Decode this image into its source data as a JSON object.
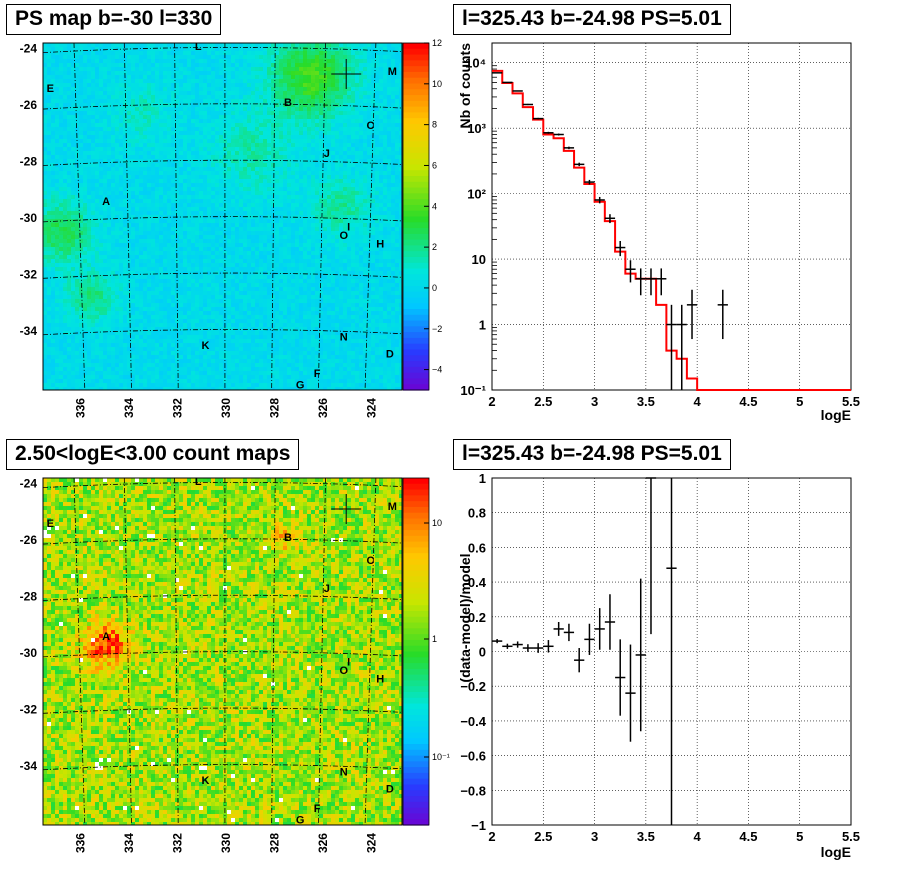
{
  "panels": {
    "tl_title": "PS map b=-30 l=330",
    "tr_title": "l=325.43 b=-24.98 PS=5.01",
    "bl_title": "2.50<logE<3.00 count maps",
    "br_title": "l=325.43 b=-24.98 PS=5.01"
  },
  "colors": {
    "data": "#000000",
    "model": "#ff0000",
    "grid": "#000000"
  },
  "chart_data": [
    {
      "type": "heatmap",
      "title": "PS map b=-30 l=330",
      "x_ticks": [
        "336",
        "334",
        "332",
        "330",
        "328",
        "326",
        "324"
      ],
      "y_ticks": [
        "-24",
        "-26",
        "-28",
        "-30",
        "-32",
        "-34"
      ],
      "xlim": [
        337.5,
        322.7
      ],
      "ylim": [
        -36.1,
        -23.8
      ],
      "colorbar": {
        "scale": "linear",
        "range": [
          -5,
          12
        ],
        "ticks": [
          "12",
          "10",
          "8",
          "6",
          "4",
          "2",
          "0",
          "−2",
          "−4"
        ]
      },
      "source_labels": [
        {
          "name": "L",
          "l": 331.1,
          "b": -23.9
        },
        {
          "name": "M",
          "l": 323.1,
          "b": -24.8
        },
        {
          "name": "E",
          "l": 337.2,
          "b": -25.4
        },
        {
          "name": "B",
          "l": 327.4,
          "b": -25.9
        },
        {
          "name": "C",
          "l": 324.0,
          "b": -26.7
        },
        {
          "name": "J",
          "l": 325.8,
          "b": -27.7
        },
        {
          "name": "A",
          "l": 334.9,
          "b": -29.4
        },
        {
          "name": "I",
          "l": 324.9,
          "b": -30.3
        },
        {
          "name": "O",
          "l": 325.1,
          "b": -30.6
        },
        {
          "name": "H",
          "l": 323.6,
          "b": -30.9
        },
        {
          "name": "N",
          "l": 325.1,
          "b": -34.2
        },
        {
          "name": "K",
          "l": 330.8,
          "b": -34.5
        },
        {
          "name": "D",
          "l": 323.2,
          "b": -34.8
        },
        {
          "name": "F",
          "l": 326.2,
          "b": -35.5
        },
        {
          "name": "G",
          "l": 326.9,
          "b": -35.9
        }
      ],
      "marker": {
        "l": 325.0,
        "b": -24.9
      }
    },
    {
      "type": "line",
      "title": "l=325.43 b=-24.98 PS=5.01",
      "xlabel": "logE",
      "ylabel": "Nb of counts",
      "xlim": [
        2,
        5.5
      ],
      "ylim": [
        0.1,
        20000
      ],
      "y_scale": "log",
      "grid": true,
      "x_ticks": [
        "2",
        "2.5",
        "3",
        "3.5",
        "4",
        "4.5",
        "5",
        "5.5"
      ],
      "y_ticks": [
        "10⁻¹",
        "1",
        "10",
        "10²",
        "10³",
        "10⁴"
      ],
      "series": [
        {
          "kind": "points_with_errors",
          "x": [
            2.05,
            2.15,
            2.25,
            2.35,
            2.45,
            2.55,
            2.65,
            2.75,
            2.85,
            2.95,
            3.05,
            3.15,
            3.25,
            3.35,
            3.45,
            3.55,
            3.65,
            3.75,
            3.85,
            3.95,
            4.25
          ],
          "y": [
            7000,
            5000,
            3700,
            2300,
            1400,
            850,
            800,
            500,
            280,
            150,
            80,
            42,
            15,
            7,
            5,
            5,
            5,
            1,
            1,
            2,
            2
          ],
          "xerr": 0.05,
          "yerr_low": [
            80,
            70,
            60,
            48,
            37,
            29,
            28,
            22,
            17,
            12,
            9,
            6.5,
            3.9,
            2.6,
            2.2,
            2.2,
            2.2,
            0.9,
            0.9,
            1.4,
            1.4
          ],
          "yerr_high": [
            80,
            70,
            60,
            48,
            37,
            29,
            28,
            22,
            17,
            12,
            9,
            6.5,
            3.9,
            2.6,
            2.2,
            2.2,
            2.2,
            1.0,
            1.0,
            1.4,
            1.4
          ]
        },
        {
          "kind": "step",
          "edges": [
            2.0,
            2.1,
            2.2,
            2.3,
            2.4,
            2.5,
            2.6,
            2.7,
            2.8,
            2.9,
            3.0,
            3.1,
            3.2,
            3.3,
            3.4,
            3.5,
            3.6,
            3.7,
            3.8,
            3.9,
            4.0,
            5.5
          ],
          "values": [
            7500,
            4900,
            3400,
            2100,
            1350,
            800,
            700,
            450,
            250,
            140,
            75,
            38,
            13,
            6,
            5,
            5,
            2,
            0.4,
            0.3,
            0.15,
            0.1
          ]
        }
      ]
    },
    {
      "type": "heatmap",
      "title": "2.50<logE<3.00 count maps",
      "x_ticks": [
        "336",
        "334",
        "332",
        "330",
        "328",
        "326",
        "324"
      ],
      "y_ticks": [
        "-24",
        "-26",
        "-28",
        "-30",
        "-32",
        "-34"
      ],
      "xlim": [
        337.5,
        322.7
      ],
      "ylim": [
        -36.1,
        -23.8
      ],
      "colorbar": {
        "scale": "log",
        "ticks": [
          "10",
          "1",
          "10⁻¹"
        ]
      },
      "source_labels": [
        {
          "name": "L",
          "l": 331.1,
          "b": -23.9
        },
        {
          "name": "M",
          "l": 323.1,
          "b": -24.8
        },
        {
          "name": "E",
          "l": 337.2,
          "b": -25.4
        },
        {
          "name": "B",
          "l": 327.4,
          "b": -25.9
        },
        {
          "name": "C",
          "l": 324.0,
          "b": -26.7
        },
        {
          "name": "J",
          "l": 325.8,
          "b": -27.7
        },
        {
          "name": "A",
          "l": 334.9,
          "b": -29.4
        },
        {
          "name": "I",
          "l": 324.9,
          "b": -30.3
        },
        {
          "name": "O",
          "l": 325.1,
          "b": -30.6
        },
        {
          "name": "H",
          "l": 323.6,
          "b": -30.9
        },
        {
          "name": "N",
          "l": 325.1,
          "b": -34.2
        },
        {
          "name": "K",
          "l": 330.8,
          "b": -34.5
        },
        {
          "name": "D",
          "l": 323.2,
          "b": -34.8
        },
        {
          "name": "F",
          "l": 326.2,
          "b": -35.5
        },
        {
          "name": "G",
          "l": 326.9,
          "b": -35.9
        }
      ],
      "marker": {
        "l": 325.0,
        "b": -24.9
      }
    },
    {
      "type": "scatter",
      "title": "l=325.43 b=-24.98 PS=5.01",
      "xlabel": "logE",
      "ylabel": "(data-model)/model",
      "xlim": [
        2,
        5.5
      ],
      "ylim": [
        -1,
        1
      ],
      "grid": true,
      "x_ticks": [
        "2",
        "2.5",
        "3",
        "3.5",
        "4",
        "4.5",
        "5",
        "5.5"
      ],
      "y_ticks": [
        "1",
        "0.8",
        "0.6",
        "0.4",
        "0.2",
        "0",
        "−0.2",
        "−0.4",
        "−0.6",
        "−0.8",
        "−1"
      ],
      "points": {
        "x": [
          2.05,
          2.15,
          2.25,
          2.35,
          2.45,
          2.55,
          2.65,
          2.75,
          2.85,
          2.95,
          3.05,
          3.15,
          3.25,
          3.35,
          3.45,
          3.55,
          3.75
        ],
        "y": [
          0.06,
          0.03,
          0.04,
          0.02,
          0.02,
          0.03,
          0.13,
          0.11,
          -0.05,
          0.07,
          0.13,
          0.17,
          -0.15,
          -0.24,
          -0.02,
          1.0,
          0.48
        ],
        "xerr": 0.05,
        "yerr_low": [
          0.012,
          0.015,
          0.018,
          0.022,
          0.028,
          0.036,
          0.04,
          0.05,
          0.07,
          0.09,
          0.12,
          0.16,
          0.22,
          0.28,
          0.44,
          0.9,
          1.48
        ],
        "yerr_high": [
          0.012,
          0.015,
          0.018,
          0.022,
          0.028,
          0.036,
          0.04,
          0.05,
          0.07,
          0.09,
          0.12,
          0.16,
          0.22,
          0.28,
          0.44,
          0.0,
          0.52
        ]
      }
    }
  ]
}
